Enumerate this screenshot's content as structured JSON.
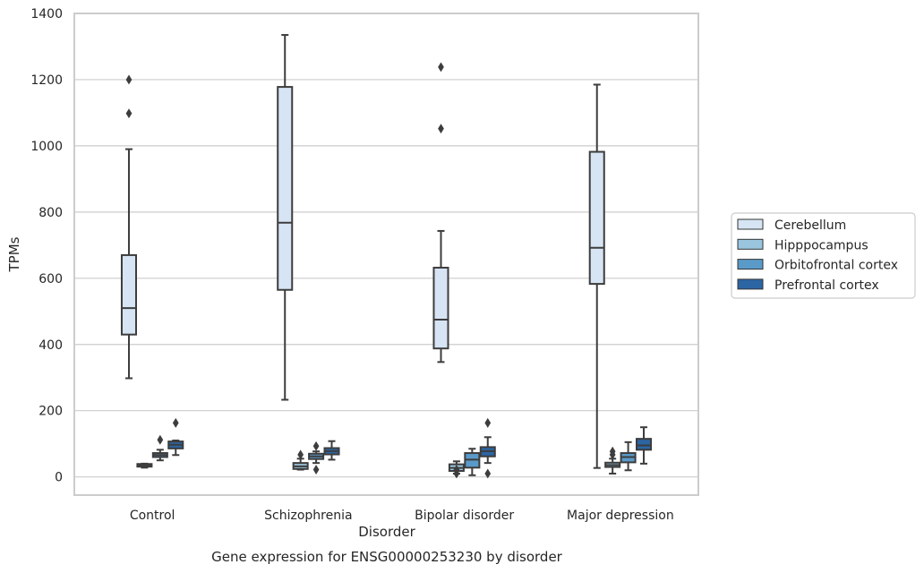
{
  "chart_data": {
    "type": "box",
    "title": "",
    "caption": "Gene expression for ENSG00000253230 by disorder",
    "xlabel": "Disorder",
    "ylabel": "TPMs",
    "ylim": [
      -55,
      1400
    ],
    "yticks": [
      0,
      200,
      400,
      600,
      800,
      1000,
      1200,
      1400
    ],
    "grid": true,
    "legend_position": "right",
    "categories": [
      "Control",
      "Schizophrenia",
      "Bipolar disorder",
      "Major depression"
    ],
    "series": [
      {
        "name": "Cerebellum",
        "color": "#d6e4f3",
        "boxes": [
          {
            "q1": 430,
            "median": 510,
            "q3": 670,
            "whisker_low": 298,
            "whisker_high": 990,
            "outliers": [
              1098,
              1200
            ]
          },
          {
            "q1": 565,
            "median": 768,
            "q3": 1178,
            "whisker_low": 233,
            "whisker_high": 1335,
            "outliers": []
          },
          {
            "q1": 388,
            "median": 475,
            "q3": 632,
            "whisker_low": 347,
            "whisker_high": 743,
            "outliers": [
              1052,
              1238
            ]
          },
          {
            "q1": 583,
            "median": 692,
            "q3": 982,
            "whisker_low": 27,
            "whisker_high": 1185,
            "outliers": []
          }
        ]
      },
      {
        "name": "Hipppocampus",
        "color": "#9ac5df",
        "boxes": [
          {
            "q1": 31,
            "median": 35,
            "q3": 39,
            "whisker_low": 28,
            "whisker_high": 40,
            "outliers": []
          },
          {
            "q1": 24,
            "median": 32,
            "q3": 42,
            "whisker_low": 22,
            "whisker_high": 55,
            "outliers": [
              67
            ]
          },
          {
            "q1": 18,
            "median": 27,
            "q3": 38,
            "whisker_low": 10,
            "whisker_high": 47,
            "outliers": [
              10,
              22
            ]
          },
          {
            "q1": 30,
            "median": 36,
            "q3": 43,
            "whisker_low": 10,
            "whisker_high": 55,
            "outliers": [
              67,
              77
            ]
          }
        ]
      },
      {
        "name": "Orbitofrontal cortex",
        "color": "#5a9ac9",
        "boxes": [
          {
            "q1": 60,
            "median": 66,
            "q3": 72,
            "whisker_low": 50,
            "whisker_high": 82,
            "outliers": [
              112
            ]
          },
          {
            "q1": 54,
            "median": 62,
            "q3": 70,
            "whisker_low": 42,
            "whisker_high": 77,
            "outliers": [
              22,
              93
            ]
          },
          {
            "q1": 28,
            "median": 52,
            "q3": 72,
            "whisker_low": 5,
            "whisker_high": 85,
            "outliers": []
          },
          {
            "q1": 44,
            "median": 60,
            "q3": 72,
            "whisker_low": 20,
            "whisker_high": 105,
            "outliers": []
          }
        ]
      },
      {
        "name": "Prefrontal cortex",
        "color": "#2b65a3",
        "boxes": [
          {
            "q1": 86,
            "median": 97,
            "q3": 107,
            "whisker_low": 66,
            "whisker_high": 110,
            "outliers": [
              163
            ]
          },
          {
            "q1": 68,
            "median": 78,
            "q3": 87,
            "whisker_low": 52,
            "whisker_high": 108,
            "outliers": []
          },
          {
            "q1": 62,
            "median": 78,
            "q3": 90,
            "whisker_low": 42,
            "whisker_high": 120,
            "outliers": [
              10,
              163
            ]
          },
          {
            "q1": 82,
            "median": 95,
            "q3": 115,
            "whisker_low": 40,
            "whisker_high": 150,
            "outliers": []
          }
        ]
      }
    ]
  }
}
